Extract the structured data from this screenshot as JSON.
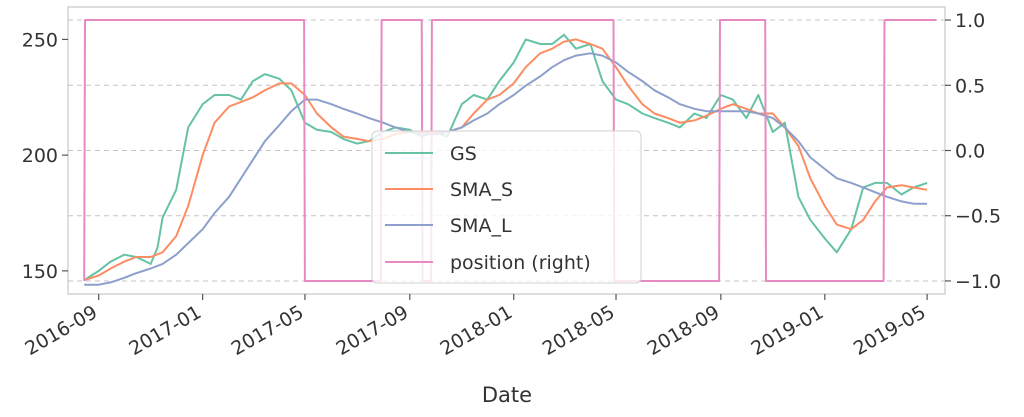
{
  "chart_data": {
    "type": "line",
    "xlabel": "Date",
    "x_ticks": [
      "2016-09",
      "2017-01",
      "2017-05",
      "2017-09",
      "2018-01",
      "2018-05",
      "2018-09",
      "2019-01",
      "2019-05"
    ],
    "x_range": [
      "2016-07-27",
      "2019-05-22"
    ],
    "y_left": {
      "ticks": [
        150,
        200,
        250
      ],
      "range": [
        140,
        264
      ]
    },
    "y_right": {
      "ticks": [
        "1.0",
        "0.5",
        "0.0",
        "−0.5",
        "−1.0"
      ],
      "range": [
        -1.1,
        1.1
      ]
    },
    "grid": true,
    "legend": {
      "placement": "lower-center",
      "entries": [
        "GS",
        "SMA_S",
        "SMA_L",
        "position (right)"
      ]
    },
    "series": [
      {
        "name": "GS",
        "axis": "left",
        "color": "#66c2a5",
        "x": [
          "2016-08-15",
          "2016-09-01",
          "2016-09-15",
          "2016-10-01",
          "2016-10-15",
          "2016-11-01",
          "2016-11-09",
          "2016-11-15",
          "2016-12-01",
          "2016-12-15",
          "2017-01-01",
          "2017-01-15",
          "2017-02-01",
          "2017-02-15",
          "2017-03-01",
          "2017-03-15",
          "2017-04-01",
          "2017-04-15",
          "2017-05-01",
          "2017-05-15",
          "2017-06-01",
          "2017-06-15",
          "2017-07-01",
          "2017-07-15",
          "2017-08-01",
          "2017-08-15",
          "2017-09-01",
          "2017-09-15",
          "2017-10-01",
          "2017-10-15",
          "2017-11-01",
          "2017-11-15",
          "2017-12-01",
          "2017-12-15",
          "2018-01-01",
          "2018-01-15",
          "2018-02-01",
          "2018-02-15",
          "2018-03-01",
          "2018-03-15",
          "2018-04-01",
          "2018-04-15",
          "2018-05-01",
          "2018-05-15",
          "2018-06-01",
          "2018-06-15",
          "2018-07-01",
          "2018-07-15",
          "2018-08-01",
          "2018-08-15",
          "2018-09-01",
          "2018-09-15",
          "2018-10-01",
          "2018-10-15",
          "2018-11-01",
          "2018-11-15",
          "2018-12-01",
          "2018-12-15",
          "2019-01-01",
          "2019-01-15",
          "2019-02-01",
          "2019-02-15",
          "2019-03-01",
          "2019-03-15",
          "2019-04-01",
          "2019-04-15",
          "2019-05-01"
        ],
        "values": [
          146,
          150,
          154,
          157,
          156,
          153,
          160,
          173,
          185,
          212,
          222,
          226,
          226,
          224,
          232,
          235,
          233,
          228,
          214,
          211,
          210,
          207,
          205,
          206,
          210,
          212,
          211,
          208,
          210,
          208,
          222,
          226,
          224,
          232,
          240,
          250,
          248,
          248,
          252,
          246,
          248,
          232,
          224,
          222,
          218,
          216,
          214,
          212,
          218,
          216,
          226,
          224,
          216,
          226,
          210,
          214,
          182,
          172,
          164,
          158,
          168,
          186,
          188,
          188,
          183,
          186,
          188
        ]
      },
      {
        "name": "SMA_S",
        "axis": "left",
        "color": "#fc8d62",
        "x": [
          "2016-08-15",
          "2016-09-01",
          "2016-09-15",
          "2016-10-01",
          "2016-10-15",
          "2016-11-01",
          "2016-11-15",
          "2016-12-01",
          "2016-12-15",
          "2017-01-01",
          "2017-01-15",
          "2017-02-01",
          "2017-02-15",
          "2017-03-01",
          "2017-03-15",
          "2017-04-01",
          "2017-04-15",
          "2017-05-01",
          "2017-05-15",
          "2017-06-01",
          "2017-06-15",
          "2017-07-01",
          "2017-07-15",
          "2017-08-01",
          "2017-08-15",
          "2017-09-01",
          "2017-09-15",
          "2017-10-01",
          "2017-10-15",
          "2017-11-01",
          "2017-11-15",
          "2017-12-01",
          "2017-12-15",
          "2018-01-01",
          "2018-01-15",
          "2018-02-01",
          "2018-02-15",
          "2018-03-01",
          "2018-03-15",
          "2018-04-01",
          "2018-04-15",
          "2018-05-01",
          "2018-05-15",
          "2018-06-01",
          "2018-06-15",
          "2018-07-01",
          "2018-07-15",
          "2018-08-01",
          "2018-08-15",
          "2018-09-01",
          "2018-09-15",
          "2018-10-01",
          "2018-10-15",
          "2018-11-01",
          "2018-11-15",
          "2018-12-01",
          "2018-12-15",
          "2019-01-01",
          "2019-01-15",
          "2019-02-01",
          "2019-02-15",
          "2019-03-01",
          "2019-03-15",
          "2019-04-01",
          "2019-04-15",
          "2019-05-01"
        ],
        "values": [
          146,
          148,
          151,
          154,
          156,
          156,
          158,
          165,
          178,
          200,
          214,
          221,
          223,
          225,
          228,
          231,
          231,
          226,
          218,
          212,
          208,
          207,
          206,
          207,
          209,
          210,
          210,
          210,
          210,
          212,
          218,
          224,
          226,
          231,
          238,
          244,
          246,
          249,
          250,
          248,
          246,
          238,
          230,
          222,
          218,
          216,
          214,
          215,
          217,
          220,
          222,
          220,
          218,
          218,
          212,
          204,
          190,
          178,
          170,
          168,
          172,
          180,
          186,
          187,
          186,
          185
        ]
      },
      {
        "name": "SMA_L",
        "axis": "left",
        "color": "#8da0cb",
        "x": [
          "2016-08-15",
          "2016-09-01",
          "2016-09-15",
          "2016-10-01",
          "2016-10-15",
          "2016-11-01",
          "2016-11-15",
          "2016-12-01",
          "2016-12-15",
          "2017-01-01",
          "2017-01-15",
          "2017-02-01",
          "2017-02-15",
          "2017-03-01",
          "2017-03-15",
          "2017-04-01",
          "2017-04-15",
          "2017-05-01",
          "2017-05-15",
          "2017-06-01",
          "2017-06-15",
          "2017-07-01",
          "2017-07-15",
          "2017-08-01",
          "2017-08-15",
          "2017-09-01",
          "2017-09-15",
          "2017-10-01",
          "2017-10-15",
          "2017-11-01",
          "2017-11-15",
          "2017-12-01",
          "2017-12-15",
          "2018-01-01",
          "2018-01-15",
          "2018-02-01",
          "2018-02-15",
          "2018-03-01",
          "2018-03-15",
          "2018-04-01",
          "2018-04-15",
          "2018-05-01",
          "2018-05-15",
          "2018-06-01",
          "2018-06-15",
          "2018-07-01",
          "2018-07-15",
          "2018-08-01",
          "2018-08-15",
          "2018-09-01",
          "2018-09-15",
          "2018-10-01",
          "2018-10-15",
          "2018-11-01",
          "2018-11-15",
          "2018-12-01",
          "2018-12-15",
          "2019-01-01",
          "2019-01-15",
          "2019-02-01",
          "2019-02-15",
          "2019-03-01",
          "2019-03-15",
          "2019-04-01",
          "2019-04-15",
          "2019-05-01"
        ],
        "values": [
          144,
          144,
          145,
          147,
          149,
          151,
          153,
          157,
          162,
          168,
          175,
          182,
          190,
          198,
          206,
          213,
          219,
          224,
          224,
          222,
          220,
          218,
          216,
          214,
          212,
          210,
          209,
          209,
          210,
          212,
          215,
          218,
          222,
          226,
          230,
          234,
          238,
          241,
          243,
          244,
          243,
          240,
          236,
          232,
          228,
          225,
          222,
          220,
          219,
          219,
          219,
          219,
          218,
          216,
          212,
          206,
          199,
          194,
          190,
          188,
          186,
          184,
          182,
          180,
          179,
          179
        ]
      },
      {
        "name": "position (right)",
        "axis": "right",
        "color": "#e78ac3",
        "step": true,
        "x": [
          "2016-08-15",
          "2016-08-16",
          "2017-04-30",
          "2017-05-01",
          "2017-07-29",
          "2017-07-30",
          "2017-09-15",
          "2017-09-16",
          "2017-09-26",
          "2017-09-27",
          "2018-04-28",
          "2018-04-29",
          "2018-08-30",
          "2018-08-31",
          "2018-10-23",
          "2018-10-24",
          "2019-03-11",
          "2019-03-12",
          "2019-05-12"
        ],
        "values": [
          -1,
          1,
          1,
          -1,
          -1,
          1,
          1,
          -1,
          -1,
          1,
          1,
          -1,
          -1,
          1,
          1,
          -1,
          -1,
          1,
          1
        ]
      }
    ]
  }
}
